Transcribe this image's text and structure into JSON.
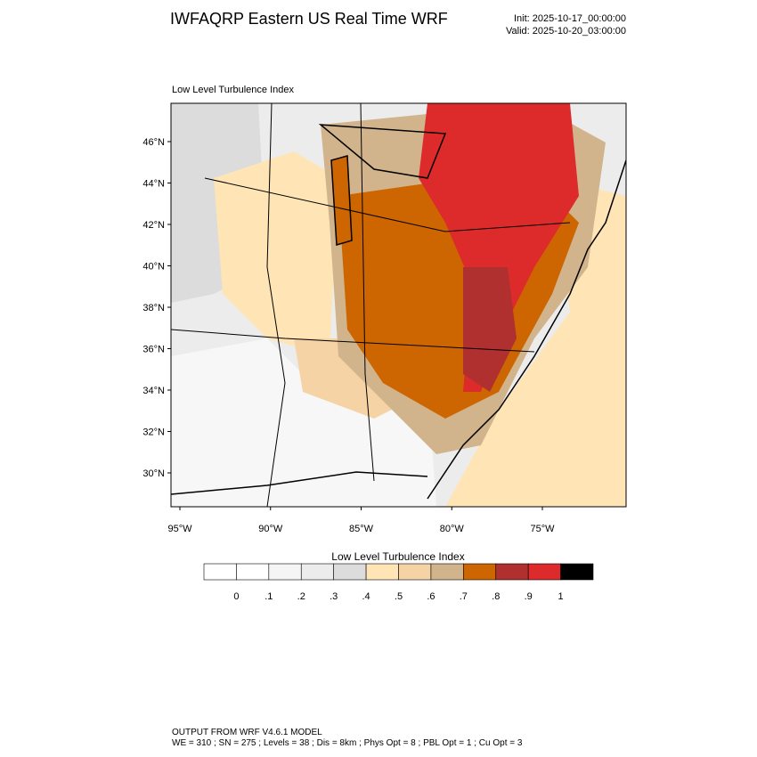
{
  "header": {
    "title": "IWFAQRP Eastern US Real Time WRF",
    "init": "Init: 2025-10-17_00:00:00",
    "valid": "Valid: 2025-10-20_03:00:00"
  },
  "map": {
    "subtitle": "Low Level Turbulence Index",
    "lat_ticks": [
      {
        "value": 30,
        "label": "30°N"
      },
      {
        "value": 32,
        "label": "32°N"
      },
      {
        "value": 34,
        "label": "34°N"
      },
      {
        "value": 36,
        "label": "36°N"
      },
      {
        "value": 38,
        "label": "38°N"
      },
      {
        "value": 40,
        "label": "40°N"
      },
      {
        "value": 42,
        "label": "42°N"
      },
      {
        "value": 44,
        "label": "44°N"
      },
      {
        "value": 46,
        "label": "46°N"
      }
    ],
    "lon_ticks": [
      {
        "value": -95,
        "label": "95°W"
      },
      {
        "value": -90,
        "label": "90°W"
      },
      {
        "value": -85,
        "label": "85°W"
      },
      {
        "value": -80,
        "label": "80°W"
      },
      {
        "value": -75,
        "label": "75°W"
      }
    ]
  },
  "colorbar": {
    "title": "Low Level Turbulence Index",
    "colors": [
      "#ffffff",
      "#f5f5f5",
      "#ececec",
      "#dcdcdc",
      "#ffe4b5",
      "#f5d3a5",
      "#d2b48c",
      "#cd6600",
      "#b03030",
      "#dd2a2a",
      "#000000"
    ],
    "labels": [
      {
        "value": 0,
        "label": "0"
      },
      {
        "value": 0.1,
        "label": ".1"
      },
      {
        "value": 0.2,
        "label": ".2"
      },
      {
        "value": 0.3,
        "label": ".3"
      },
      {
        "value": 0.4,
        "label": ".4"
      },
      {
        "value": 0.5,
        "label": ".5"
      },
      {
        "value": 0.6,
        "label": ".6"
      },
      {
        "value": 0.7,
        "label": ".7"
      },
      {
        "value": 0.8,
        "label": ".8"
      },
      {
        "value": 0.9,
        "label": ".9"
      },
      {
        "value": 1,
        "label": "1"
      }
    ]
  },
  "footer": {
    "line1": "OUTPUT FROM WRF V4.6.1 MODEL",
    "line2": "WE = 310 ; SN = 275 ; Levels = 38 ; Dis = 8km ; Phys Opt = 8 ; PBL Opt = 1 ; Cu Opt = 3"
  }
}
